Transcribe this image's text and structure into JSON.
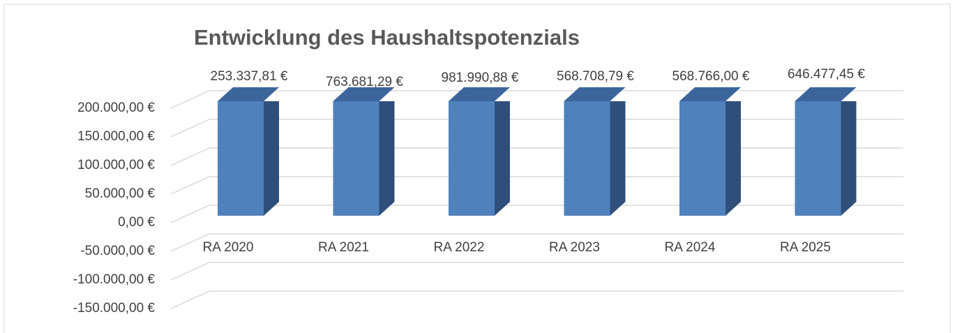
{
  "chart_data": {
    "type": "bar3d",
    "title": "Entwicklung des Haushaltspotenzials",
    "categories": [
      "RA 2020",
      "RA 2021",
      "RA 2022",
      "RA 2023",
      "RA 2024",
      "RA 2025"
    ],
    "values": [
      253337.81,
      763681.29,
      981990.88,
      568708.79,
      568766.0,
      646477.45
    ],
    "value_labels": [
      "253.337,81 €",
      "763.681,29 €",
      "981.990,88 €",
      "568.708,79 €",
      "568.766,00 €",
      "646.477,45 €"
    ],
    "color": "#4f81bd",
    "ylim": [
      -150000,
      200000
    ],
    "yticks": [
      {
        "value": -150000,
        "label": "-150.000,00 €"
      },
      {
        "value": -100000,
        "label": "-100.000,00 €"
      },
      {
        "value": -50000,
        "label": "-50.000,00 €"
      },
      {
        "value": 0,
        "label": "0,00 €"
      },
      {
        "value": 50000,
        "label": "50.000,00 €"
      },
      {
        "value": 100000,
        "label": "100.000,00 €"
      },
      {
        "value": 150000,
        "label": "150.000,00 €"
      },
      {
        "value": 200000,
        "label": "200.000,00 €"
      }
    ],
    "grid": true
  }
}
